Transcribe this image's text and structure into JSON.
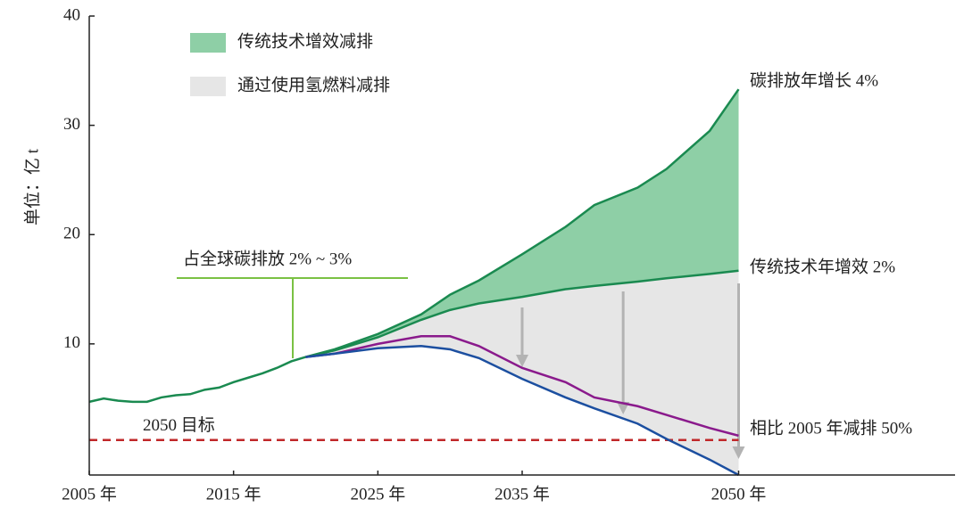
{
  "chart_data": {
    "type": "line",
    "ylabel": "单位：亿 t",
    "xlim": [
      2005,
      2065
    ],
    "ylim": [
      -2,
      40
    ],
    "xticks": [
      {
        "value": 2005,
        "label": "2005 年"
      },
      {
        "value": 2015,
        "label": "2015 年"
      },
      {
        "value": 2025,
        "label": "2025 年"
      },
      {
        "value": 2035,
        "label": "2035 年"
      },
      {
        "value": 2050,
        "label": "2050 年"
      }
    ],
    "yticks": [
      10,
      20,
      30,
      40
    ],
    "series": [
      {
        "color": "#1a8a50",
        "x": [
          2005,
          2006,
          2007,
          2008,
          2009,
          2010,
          2011,
          2012,
          2013,
          2014,
          2015,
          2016,
          2017,
          2018,
          2019,
          2020
        ],
        "values": [
          4.7,
          5.0,
          4.8,
          4.7,
          4.7,
          5.1,
          5.3,
          5.4,
          5.8,
          6.0,
          6.5,
          6.9,
          7.3,
          7.8,
          8.4,
          8.8
        ]
      },
      {
        "color": "#1a8a50",
        "x": [
          2020,
          2022,
          2025,
          2028,
          2030,
          2032,
          2035,
          2038,
          2040,
          2043,
          2045,
          2048,
          2050
        ],
        "values": [
          8.8,
          9.5,
          10.9,
          12.7,
          14.5,
          15.8,
          18.2,
          20.7,
          22.7,
          24.3,
          26.0,
          29.5,
          33.3
        ]
      },
      {
        "color": "#1a8a50",
        "x": [
          2020,
          2022,
          2025,
          2028,
          2030,
          2032,
          2035,
          2038,
          2040,
          2043,
          2045,
          2048,
          2050
        ],
        "values": [
          8.8,
          9.4,
          10.6,
          12.2,
          13.1,
          13.7,
          14.3,
          15.0,
          15.3,
          15.7,
          16.0,
          16.4,
          16.7
        ]
      },
      {
        "color": "#8a1a8c",
        "x": [
          2020,
          2022,
          2025,
          2028,
          2030,
          2032,
          2035,
          2038,
          2040,
          2043,
          2045,
          2048,
          2050
        ],
        "values": [
          8.8,
          9.1,
          10.0,
          10.7,
          10.7,
          9.8,
          7.8,
          6.5,
          5.1,
          4.3,
          3.5,
          2.3,
          1.6
        ]
      },
      {
        "color": "#1c4fa0",
        "x": [
          2020,
          2022,
          2025,
          2028,
          2030,
          2032,
          2035,
          2038,
          2040,
          2043,
          2045,
          2048,
          2050
        ],
        "values": [
          8.8,
          9.1,
          9.6,
          9.8,
          9.5,
          8.7,
          6.8,
          5.1,
          4.1,
          2.7,
          1.3,
          -0.6,
          -2.0
        ]
      }
    ],
    "fills": [
      {
        "name": "传统技术增效减排",
        "color": "#8ecfa6",
        "between": [
          1,
          2
        ]
      },
      {
        "name": "通过使用氢燃料减排",
        "color": "#e6e6e6",
        "between": [
          2,
          4
        ]
      }
    ],
    "target": {
      "value": 1.2,
      "label": "2050 目标",
      "color": "#c0282a"
    },
    "annotations": [
      "碳排放年增长 4%",
      "传统技术年增效 2%",
      "相比 2005 年减排 50%",
      "占全球碳排放 2% ~ 3%"
    ]
  }
}
